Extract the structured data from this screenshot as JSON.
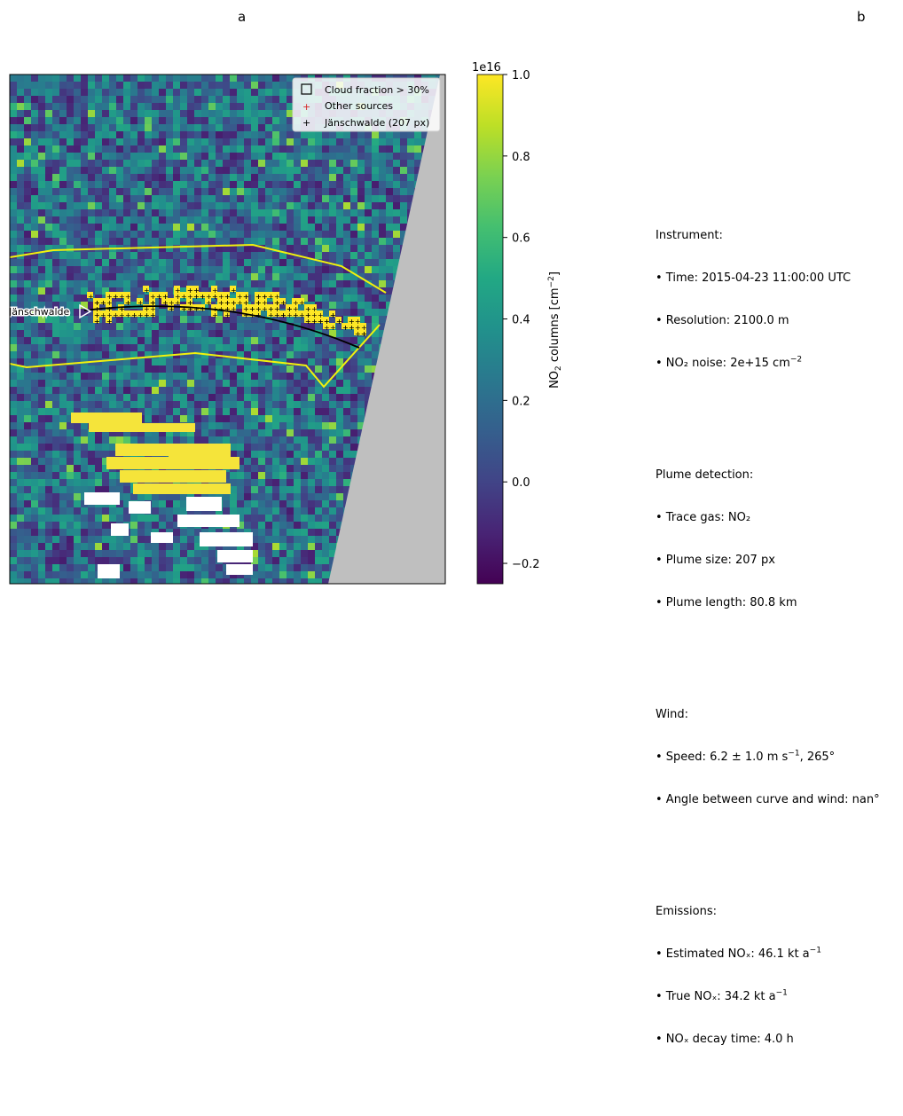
{
  "panels": {
    "a": "a",
    "b": "b"
  },
  "chart_data": {
    "type": "heatmap",
    "location_label": "Jänschwalde",
    "colorbar": {
      "label": "NO",
      "label_sub": "2",
      "label_tail": " columns [cm",
      "label_sup": "−2",
      "label_end": "]",
      "scale_label": "1e16",
      "ticks": [
        "−0.2",
        "0.0",
        "0.2",
        "0.4",
        "0.6",
        "0.8",
        "1.0"
      ],
      "tick_values": [
        -0.2,
        0.0,
        0.2,
        0.4,
        0.6,
        0.8,
        1.0
      ],
      "range": [
        -0.25,
        1.0
      ],
      "colormap": "viridis"
    },
    "legend": {
      "position": "top-right",
      "entries": [
        {
          "label": "Cloud fraction > 30%",
          "marker": "open-square"
        },
        {
          "label": "Other sources",
          "marker": "red-plus"
        },
        {
          "label": "Jänschwalde (207 px)",
          "marker": "black-plus"
        }
      ]
    },
    "colors": {
      "swath_boundary": "#f2f20c",
      "plume_pixels": "#fde725",
      "cloud_mask": "#ffffff",
      "no_data": "#bfbfbf",
      "center_line": "#000000"
    }
  },
  "info": {
    "instrument": {
      "header": "Instrument:",
      "time": "• Time: 2015-04-23 11:00:00 UTC",
      "resolution": "• Resolution: 2100.0 m",
      "noise_pre": "• NO₂ noise: 2e+15 cm",
      "noise_sup": "−2"
    },
    "plume": {
      "header": "Plume detection:",
      "gas": "• Trace gas: NO₂",
      "size": "• Plume size: 207 px",
      "length": "• Plume length: 80.8 km"
    },
    "wind": {
      "header": "Wind:",
      "speed_pre": "• Speed: 6.2 ± 1.0 m s",
      "speed_sup": "−1",
      "speed_post": ", 265°",
      "angle": "• Angle between curve and wind: nan°"
    },
    "emissions": {
      "header": "Emissions:",
      "est_pre": "• Estimated NOₓ: 46.1 kt a",
      "est_sup": "−1",
      "true_pre": "• True NOₓ: 34.2 kt a",
      "true_sup": "−1",
      "decay": "• NOₓ decay time: 4.0 h"
    }
  }
}
